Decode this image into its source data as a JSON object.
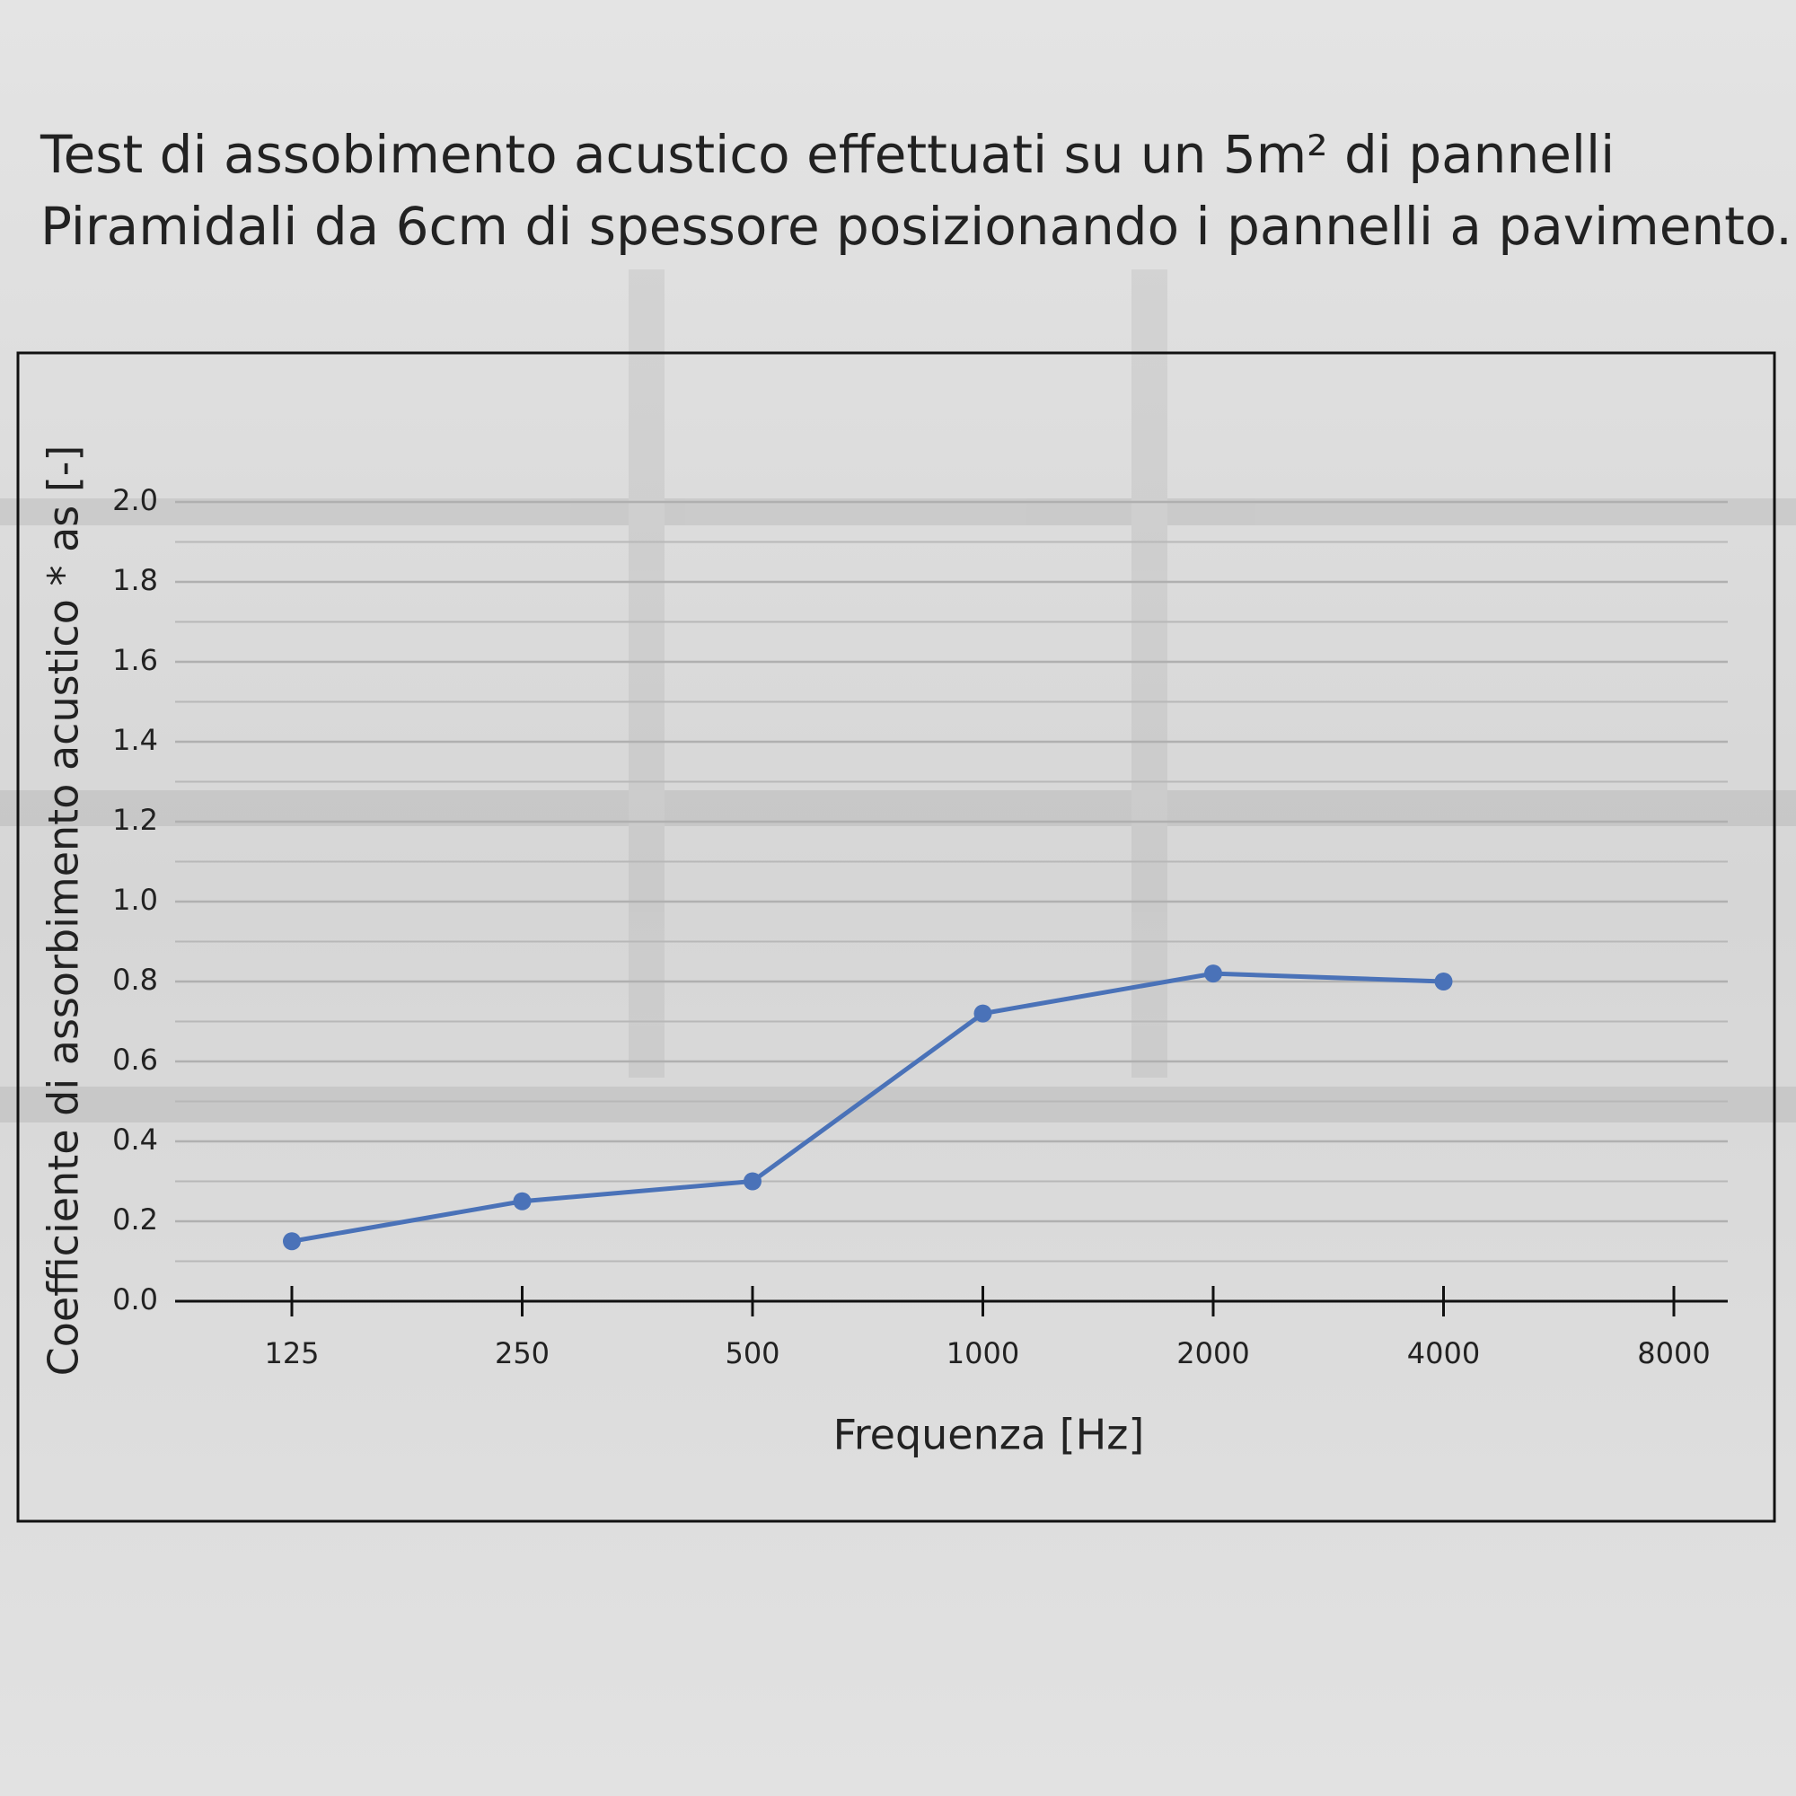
{
  "chart_data": {
    "type": "line",
    "title": [
      "Test di assobimento acustico effettuati su un 5m² di pannelli",
      "Piramidali da 6cm di spessore posizionando i pannelli a pavimento."
    ],
    "x_label": "Frequenza [Hz]",
    "y_label": "Coefficiente di assorbimento acustico * as [-]",
    "categories": [
      "125",
      "250",
      "500",
      "1000",
      "2000",
      "4000",
      "8000"
    ],
    "series": [
      {
        "name": "as",
        "color": "#4a72b8",
        "values": [
          0.15,
          0.25,
          0.3,
          0.72,
          0.82,
          0.8,
          null
        ]
      }
    ],
    "ylim": [
      0,
      2
    ],
    "yticks": [
      {
        "value": 0,
        "label": "0.0"
      },
      0.2,
      0.4,
      0.6,
      0.8,
      {
        "value": 1,
        "label": "1.0"
      },
      1.2,
      1.4,
      1.6,
      1.8,
      {
        "value": 2,
        "label": "2.0"
      }
    ],
    "minor_yticks": [
      0.1,
      0.3,
      0.5,
      0.7,
      0.9,
      1.1,
      1.3,
      1.5,
      1.7,
      1.9
    ],
    "grid": true
  }
}
